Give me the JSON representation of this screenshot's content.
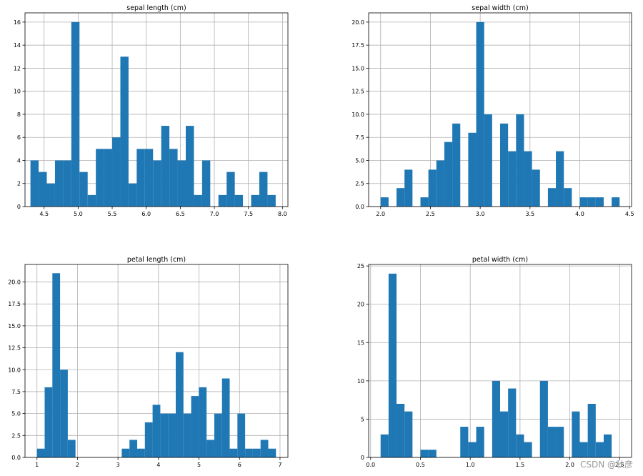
{
  "colors": {
    "bar": "#1f77b4",
    "grid": "#b0b0b0",
    "axis": "#000000"
  },
  "watermark": "CSDN @秋彦",
  "chart_data": [
    {
      "type": "bar",
      "title": "sepal length (cm)",
      "xlim": [
        4.22,
        8.08
      ],
      "ylim": [
        0,
        16.8
      ],
      "xticks": [
        4.5,
        5.0,
        5.5,
        6.0,
        6.5,
        7.0,
        7.5,
        8.0
      ],
      "xticklabels": [
        "4.5",
        "5.0",
        "5.5",
        "6.0",
        "6.5",
        "7.0",
        "7.5",
        "8.0"
      ],
      "yticks": [
        0,
        2,
        4,
        6,
        8,
        10,
        12,
        14,
        16
      ],
      "yticklabels": [
        "0",
        "2",
        "4",
        "6",
        "8",
        "10",
        "12",
        "14",
        "16"
      ],
      "bin_start": 4.3,
      "bin_end": 7.9,
      "values": [
        4,
        3,
        2,
        4,
        4,
        16,
        3,
        1,
        5,
        5,
        6,
        13,
        2,
        5,
        5,
        4,
        7,
        5,
        4,
        7,
        1,
        4,
        0,
        1,
        3,
        1,
        0,
        1,
        3,
        1
      ]
    },
    {
      "type": "bar",
      "title": "sepal width (cm)",
      "xlim": [
        1.88,
        4.52
      ],
      "ylim": [
        0,
        21
      ],
      "xticks": [
        2.0,
        2.5,
        3.0,
        3.5,
        4.0,
        4.5
      ],
      "xticklabels": [
        "2.0",
        "2.5",
        "3.0",
        "3.5",
        "4.0",
        "4.5"
      ],
      "yticks": [
        0,
        2.5,
        5,
        7.5,
        10,
        12.5,
        15,
        17.5,
        20
      ],
      "yticklabels": [
        "0.0",
        "2.5",
        "5.0",
        "7.5",
        "10.0",
        "12.5",
        "15.0",
        "17.5",
        "20.0"
      ],
      "bin_start": 2.0,
      "bin_end": 4.4,
      "values": [
        1,
        0,
        2,
        4,
        0,
        1,
        4,
        5,
        7,
        9,
        0,
        8,
        20,
        10,
        0,
        9,
        6,
        10,
        6,
        4,
        0,
        2,
        6,
        2,
        0,
        1,
        1,
        1,
        0,
        1
      ]
    },
    {
      "type": "bar",
      "title": "petal length (cm)",
      "xlim": [
        0.705,
        7.195
      ],
      "ylim": [
        0,
        22
      ],
      "xticks": [
        1,
        2,
        3,
        4,
        5,
        6,
        7
      ],
      "xticklabels": [
        "1",
        "2",
        "3",
        "4",
        "5",
        "6",
        "7"
      ],
      "yticks": [
        0,
        2.5,
        5,
        7.5,
        10,
        12.5,
        15,
        17.5,
        20
      ],
      "yticklabels": [
        "0.0",
        "2.5",
        "5.0",
        "7.5",
        "10.0",
        "12.5",
        "15.0",
        "17.5",
        "20.0"
      ],
      "bin_start": 1.0,
      "bin_end": 6.9,
      "values": [
        1,
        8,
        21,
        10,
        2,
        0,
        0,
        0,
        0,
        0,
        0,
        1,
        2,
        1,
        4,
        6,
        5,
        5,
        12,
        5,
        7,
        8,
        2,
        5,
        9,
        1,
        5,
        1,
        1,
        2,
        1
      ]
    },
    {
      "type": "bar",
      "title": "petal width (cm)",
      "xlim": [
        -0.02,
        2.62
      ],
      "ylim": [
        0,
        25.2
      ],
      "xticks": [
        0.0,
        0.5,
        1.0,
        1.5,
        2.0,
        2.5
      ],
      "xticklabels": [
        "0.0",
        "0.5",
        "1.0",
        "1.5",
        "2.0",
        "2.5"
      ],
      "yticks": [
        0,
        5,
        10,
        15,
        20,
        25
      ],
      "yticklabels": [
        "0",
        "5",
        "10",
        "15",
        "20",
        "25"
      ],
      "bin_start": 0.1,
      "bin_end": 2.5,
      "values": [
        3,
        24,
        7,
        6,
        0,
        1,
        1,
        0,
        0,
        0,
        4,
        2,
        4,
        0,
        10,
        6,
        9,
        3,
        2,
        0,
        10,
        4,
        4,
        0,
        6,
        2,
        7,
        2,
        3,
        0
      ]
    }
  ]
}
